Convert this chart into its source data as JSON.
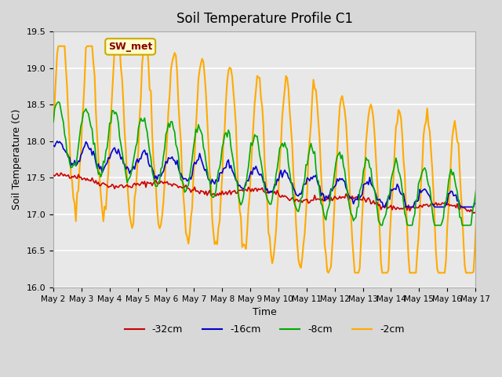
{
  "title": "Soil Temperature Profile C1",
  "xlabel": "Time",
  "ylabel": "Soil Temperature (C)",
  "ylim": [
    16.0,
    19.5
  ],
  "xlim": [
    0,
    360
  ],
  "yticks": [
    16.0,
    16.5,
    17.0,
    17.5,
    18.0,
    18.5,
    19.0,
    19.5
  ],
  "x_tick_labels": [
    "May 2",
    "May 3",
    "May 4",
    "May 5",
    "May 6",
    "May 7",
    "May 8",
    "May 9",
    "May 10",
    "May 11",
    "May 12",
    "May 13",
    "May 14",
    "May 15",
    "May 16",
    "May 17"
  ],
  "legend_labels": [
    "-32cm",
    "-16cm",
    "-8cm",
    "-2cm"
  ],
  "legend_colors": [
    "#cc0000",
    "#0000cc",
    "#00aa00",
    "#ffaa00"
  ],
  "annotation_text": "SW_met",
  "annotation_bg": "#ffffcc",
  "annotation_border": "#ccaa00",
  "annotation_text_color": "#880000",
  "bg_color": "#e8e8e8",
  "plot_bg": "#f0f0f0",
  "grid_color": "#ffffff",
  "series_colors": [
    "#cc0000",
    "#0000cc",
    "#00aa00",
    "#ffaa00"
  ],
  "n_points": 361
}
